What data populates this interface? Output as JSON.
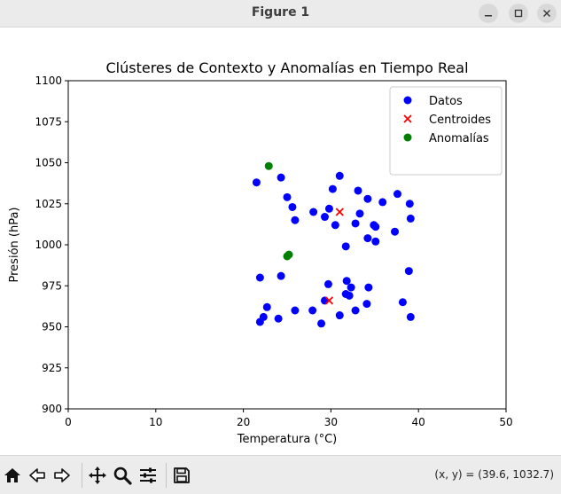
{
  "window": {
    "title": "Figure 1"
  },
  "toolbar": {
    "coords": "(x, y) = (39.6, 1032.7)"
  },
  "chart_data": {
    "type": "scatter",
    "title": "Clústeres de Contexto y Anomalías en Tiempo Real",
    "xlabel": "Temperatura (°C)",
    "ylabel": "Presión (hPa)",
    "xlim": [
      0,
      50
    ],
    "ylim": [
      900,
      1100
    ],
    "xticks": [
      "0",
      "10",
      "20",
      "30",
      "40",
      "50"
    ],
    "yticks": [
      "900",
      "925",
      "950",
      "975",
      "1000",
      "1025",
      "1050",
      "1075",
      "1100"
    ],
    "grid": false,
    "legend_position": "top-right",
    "series": [
      {
        "name": "Datos",
        "marker": "circle",
        "color": "#0000ff",
        "points": [
          [
            21.5,
            1038
          ],
          [
            24.3,
            1041
          ],
          [
            31.0,
            1042
          ],
          [
            30.2,
            1034
          ],
          [
            33.1,
            1033
          ],
          [
            34.2,
            1028
          ],
          [
            37.6,
            1031
          ],
          [
            39.0,
            1025
          ],
          [
            25.0,
            1029
          ],
          [
            25.6,
            1023
          ],
          [
            25.9,
            1015
          ],
          [
            28.0,
            1020
          ],
          [
            29.3,
            1017
          ],
          [
            29.8,
            1022
          ],
          [
            30.5,
            1012
          ],
          [
            32.8,
            1013
          ],
          [
            33.3,
            1019
          ],
          [
            34.9,
            1012
          ],
          [
            35.1,
            1011
          ],
          [
            35.9,
            1026
          ],
          [
            39.1,
            1016
          ],
          [
            31.7,
            999
          ],
          [
            34.2,
            1004
          ],
          [
            35.1,
            1002
          ],
          [
            37.3,
            1008
          ],
          [
            21.9,
            980
          ],
          [
            24.3,
            981
          ],
          [
            29.7,
            976
          ],
          [
            31.8,
            978
          ],
          [
            32.3,
            974
          ],
          [
            34.3,
            974
          ],
          [
            38.9,
            984
          ],
          [
            22.7,
            962
          ],
          [
            22.3,
            956
          ],
          [
            21.9,
            953
          ],
          [
            24.0,
            955
          ],
          [
            25.9,
            960
          ],
          [
            27.9,
            960
          ],
          [
            29.3,
            966
          ],
          [
            28.9,
            952
          ],
          [
            31.0,
            957
          ],
          [
            31.7,
            970
          ],
          [
            32.1,
            969
          ],
          [
            32.8,
            960
          ],
          [
            34.1,
            964
          ],
          [
            38.2,
            965
          ],
          [
            39.1,
            956
          ]
        ]
      },
      {
        "name": "Centroides",
        "marker": "x",
        "color": "#ff0000",
        "points": [
          [
            31.0,
            1020
          ],
          [
            29.8,
            966
          ]
        ]
      },
      {
        "name": "Anomalías",
        "marker": "circle",
        "color": "#008000",
        "points": [
          [
            22.9,
            1048
          ],
          [
            25.2,
            994
          ],
          [
            25.0,
            993
          ]
        ]
      }
    ]
  }
}
